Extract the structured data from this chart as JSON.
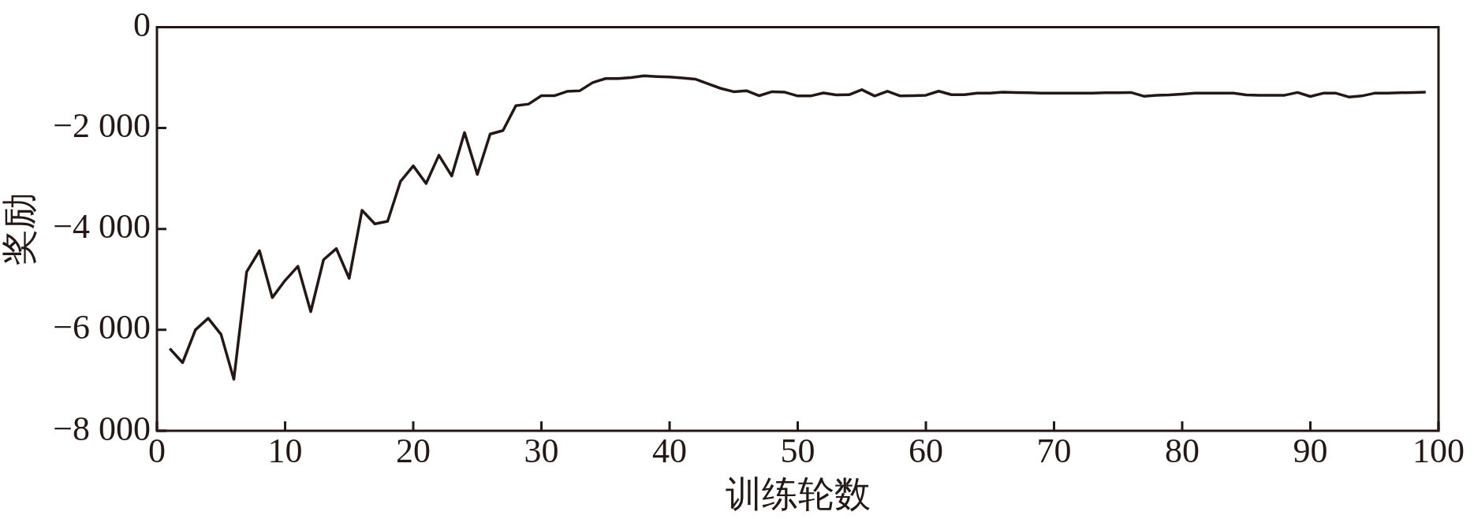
{
  "chart_data": {
    "type": "line",
    "xlabel": "训练轮数",
    "ylabel": "奖励",
    "x": [
      1,
      2,
      3,
      4,
      5,
      6,
      7,
      8,
      9,
      10,
      11,
      12,
      13,
      14,
      15,
      16,
      17,
      18,
      19,
      20,
      21,
      22,
      23,
      24,
      25,
      26,
      27,
      28,
      29,
      30,
      31,
      32,
      33,
      34,
      35,
      36,
      37,
      38,
      39,
      40,
      41,
      42,
      43,
      44,
      45,
      46,
      47,
      48,
      49,
      50,
      51,
      52,
      53,
      54,
      55,
      56,
      57,
      58,
      59,
      60,
      61,
      62,
      63,
      64,
      65,
      66,
      67,
      68,
      69,
      70,
      71,
      72,
      73,
      74,
      75,
      76,
      77,
      78,
      79,
      80,
      81,
      82,
      83,
      84,
      85,
      86,
      87,
      88,
      89,
      90,
      91,
      92,
      93,
      94,
      95,
      96,
      97,
      98,
      99
    ],
    "series": [
      {
        "color": "#231815",
        "values": [
          -6370,
          -6650,
          -6000,
          -5770,
          -6090,
          -6980,
          -4850,
          -4430,
          -5360,
          -5020,
          -4740,
          -5640,
          -4610,
          -4390,
          -4980,
          -3630,
          -3900,
          -3850,
          -3060,
          -2750,
          -3100,
          -2540,
          -2950,
          -2090,
          -2920,
          -2120,
          -2050,
          -1560,
          -1525,
          -1360,
          -1360,
          -1275,
          -1260,
          -1100,
          -1020,
          -1020,
          -1000,
          -965,
          -980,
          -990,
          -1010,
          -1030,
          -1125,
          -1215,
          -1280,
          -1260,
          -1360,
          -1280,
          -1290,
          -1365,
          -1365,
          -1305,
          -1345,
          -1340,
          -1240,
          -1365,
          -1270,
          -1365,
          -1360,
          -1350,
          -1270,
          -1340,
          -1340,
          -1310,
          -1310,
          -1290,
          -1295,
          -1300,
          -1310,
          -1310,
          -1310,
          -1310,
          -1310,
          -1300,
          -1300,
          -1295,
          -1370,
          -1350,
          -1345,
          -1330,
          -1310,
          -1310,
          -1310,
          -1310,
          -1345,
          -1350,
          -1350,
          -1350,
          -1295,
          -1375,
          -1310,
          -1310,
          -1385,
          -1365,
          -1310,
          -1310,
          -1300,
          -1295,
          -1290
        ]
      }
    ],
    "xlim": [
      0,
      100
    ],
    "xticks": [
      0,
      10,
      20,
      30,
      40,
      50,
      60,
      70,
      80,
      90,
      100
    ],
    "ylim": [
      -8000,
      0
    ],
    "yticks": [
      {
        "value": -8000,
        "label": "−8 000"
      },
      {
        "value": -6000,
        "label": "−6 000"
      },
      {
        "value": -4000,
        "label": "−4 000"
      },
      {
        "value": -2000,
        "label": "−2 000"
      },
      0
    ],
    "grid": false,
    "legend": false,
    "marker": "none",
    "line_style": "solid"
  }
}
